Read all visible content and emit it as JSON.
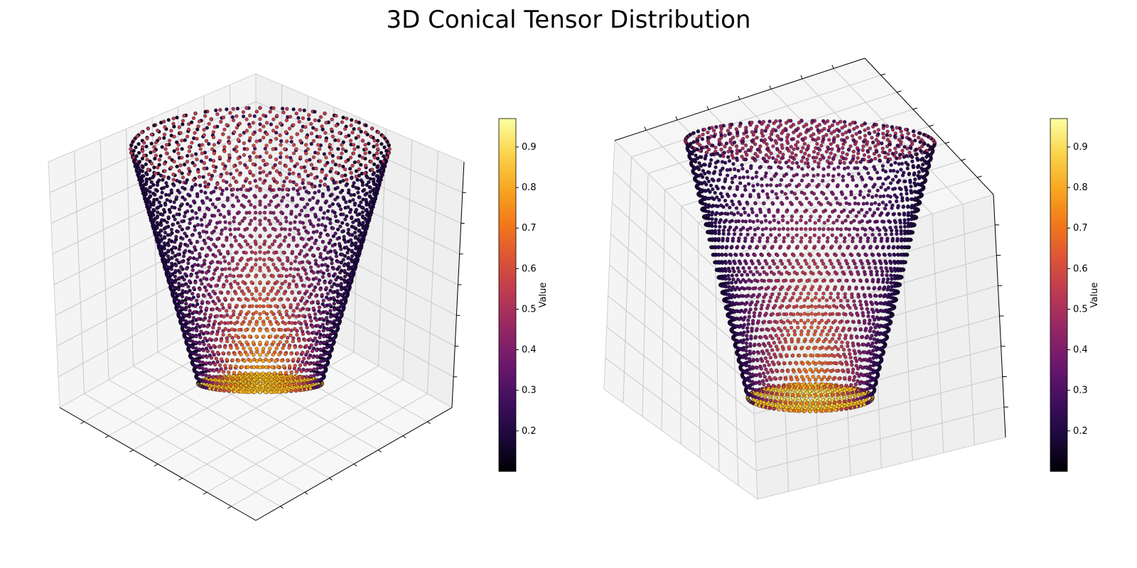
{
  "figure": {
    "title": "3D Conical Tensor Distribution"
  },
  "chart_data": [
    {
      "type": "scatter3d",
      "view": "isometric-top",
      "shape": "cone (frustum), wide top, narrow bottom",
      "colormap": "inferno",
      "value_range": [
        0.1,
        0.97
      ],
      "colorbar": {
        "label": "Value",
        "ticks": [
          0.2,
          0.3,
          0.4,
          0.5,
          0.6,
          0.7,
          0.8,
          0.9
        ]
      },
      "grid": true,
      "axis_tick_labels": false,
      "value_trend": "lowest (≈0.1–0.25) on outer surface, ≈0.5 on top face, highest (≈0.9) near the narrow bottom"
    },
    {
      "type": "scatter3d",
      "view": "tilted-from-below",
      "shape": "cone (frustum), wide top, narrow bottom",
      "colormap": "inferno",
      "value_range": [
        0.1,
        0.97
      ],
      "colorbar": {
        "label": "Value",
        "ticks": [
          0.2,
          0.3,
          0.4,
          0.5,
          0.6,
          0.7,
          0.8,
          0.9
        ]
      },
      "grid": true,
      "axis_tick_labels": false,
      "value_trend": "peak (≈0.95) at the bottom face, decreasing toward the wide top"
    }
  ]
}
